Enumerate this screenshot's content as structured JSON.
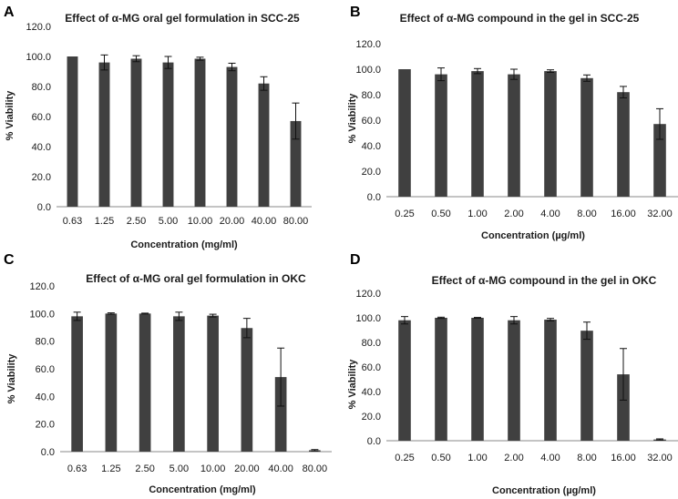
{
  "chart_data": [
    {
      "panel": "A",
      "type": "bar",
      "title": "Effect of α-MG oral gel  formulation in SCC-25",
      "xlabel": "Concentration (mg/ml)",
      "ylabel": "% Viability",
      "ylim": [
        0,
        120
      ],
      "yticks": [
        "0.0",
        "20.0",
        "40.0",
        "60.0",
        "80.0",
        "100.0",
        "120.0"
      ],
      "categories": [
        "0.63",
        "1.25",
        "2.50",
        "5.00",
        "10.00",
        "20.00",
        "40.00",
        "80.00"
      ],
      "values": [
        100,
        96,
        98.5,
        96,
        98.5,
        93,
        82,
        57
      ],
      "errors": [
        0,
        5,
        2,
        4,
        1,
        2.5,
        4.5,
        12
      ]
    },
    {
      "panel": "B",
      "type": "bar",
      "title": "Effect of α-MG compound in the gel in SCC-25",
      "xlabel": "Concentration (µg/ml)",
      "ylabel": "% Viability",
      "ylim": [
        0,
        120
      ],
      "yticks": [
        "0.0",
        "20.0",
        "40.0",
        "60.0",
        "80.0",
        "100.0",
        "120.0"
      ],
      "categories": [
        "0.25",
        "0.50",
        "1.00",
        "2.00",
        "4.00",
        "8.00",
        "16.00",
        "32.00"
      ],
      "values": [
        100,
        96,
        98.5,
        96,
        98.5,
        93,
        82,
        57
      ],
      "errors": [
        0,
        5,
        2,
        4,
        1,
        2.5,
        4.5,
        12
      ]
    },
    {
      "panel": "C",
      "type": "bar",
      "title": "Effect of α-MG oral gel formulation in OKC",
      "xlabel": "Concentration (mg/ml)",
      "ylabel": "% Viability",
      "ylim": [
        0,
        120
      ],
      "yticks": [
        "0.0",
        "20.0",
        "40.0",
        "60.0",
        "80.0",
        "100.0",
        "120.0"
      ],
      "categories": [
        "0.63",
        "1.25",
        "2.50",
        "5.00",
        "10.00",
        "20.00",
        "40.00",
        "80.00"
      ],
      "values": [
        98,
        100,
        100,
        98,
        98.5,
        89.5,
        54,
        1
      ],
      "errors": [
        3,
        0.5,
        0.3,
        3,
        1,
        7,
        21,
        0.5
      ]
    },
    {
      "panel": "D",
      "type": "bar",
      "title": "Effect of α-MG compound in the gel in OKC",
      "xlabel": "Concentration (µg/ml)",
      "ylabel": "% Viability",
      "ylim": [
        0,
        120
      ],
      "yticks": [
        "0.0",
        "20.0",
        "40.0",
        "60.0",
        "80.0",
        "100.0",
        "120.0"
      ],
      "categories": [
        "0.25",
        "0.50",
        "1.00",
        "2.00",
        "4.00",
        "8.00",
        "16.00",
        "32.00"
      ],
      "values": [
        98,
        100,
        100,
        98,
        98.5,
        89.5,
        54,
        1
      ],
      "errors": [
        3,
        0.5,
        0.3,
        3,
        1,
        7,
        21,
        0.5
      ]
    }
  ]
}
